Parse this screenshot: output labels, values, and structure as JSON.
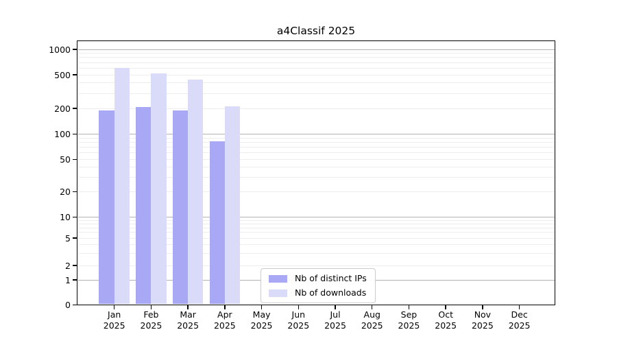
{
  "chart_data": {
    "type": "bar",
    "title": "a4Classif 2025",
    "year": "2025",
    "categories": [
      "Jan",
      "Feb",
      "Mar",
      "Apr",
      "May",
      "Jun",
      "Jul",
      "Aug",
      "Sep",
      "Oct",
      "Nov",
      "Dec"
    ],
    "series": [
      {
        "name": "Nb of distinct IPs",
        "color": "#a8a8f5",
        "values": [
          190,
          207,
          190,
          82,
          0,
          0,
          0,
          0,
          0,
          0,
          0,
          0
        ]
      },
      {
        "name": "Nb of downloads",
        "color": "#dadaf9",
        "values": [
          600,
          515,
          437,
          210,
          0,
          0,
          0,
          0,
          0,
          0,
          0,
          0
        ]
      }
    ],
    "y_axis": {
      "scale": "log-like",
      "ticks": [
        0,
        1,
        2,
        5,
        10,
        20,
        50,
        100,
        200,
        500,
        1000
      ],
      "major_gridline_values": [
        1,
        10,
        100,
        1000
      ],
      "minor_gridline_values": [
        2,
        3,
        4,
        5,
        6,
        7,
        8,
        9,
        20,
        30,
        40,
        50,
        60,
        70,
        80,
        90,
        200,
        300,
        400,
        500,
        600,
        700,
        800,
        900
      ]
    },
    "x_axis": {
      "tick_label_format": "month over year"
    },
    "legend": {
      "position": "bottom-center",
      "entries": [
        "Nb of distinct IPs",
        "Nb of downloads"
      ]
    },
    "grid": true,
    "colors": {
      "axis": "#000000",
      "major_grid": "#b2b2b2",
      "minor_grid": "#ededed",
      "background": "#ffffff"
    }
  }
}
